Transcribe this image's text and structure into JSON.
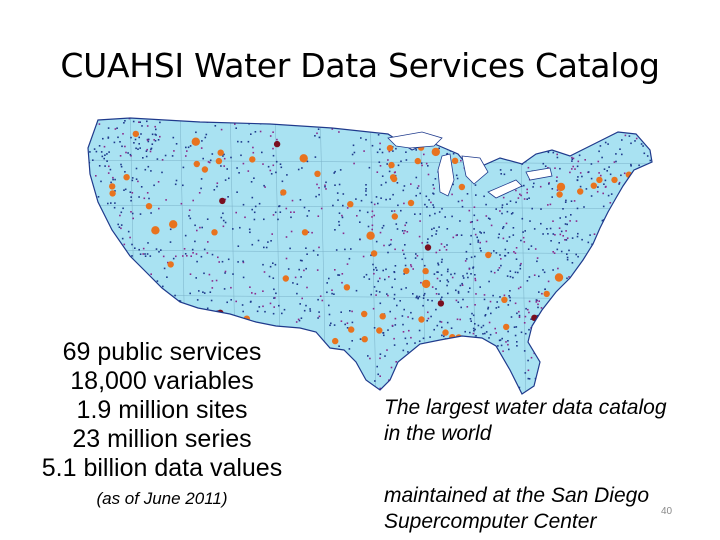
{
  "title": "CUAHSI Water Data Services Catalog",
  "stats": [
    "69 public services",
    "18,000 variables",
    "1.9 million sites",
    "23 million series",
    "5.1 billion data values"
  ],
  "as_of": "(as of June 2011)",
  "caption_1": "The largest water data catalog in the world",
  "caption_2": "maintained at the San Diego Supercomputer Center",
  "slide_number": "40",
  "map": {
    "region": "contiguous-united-states",
    "colors": {
      "land": "#a9e2f2",
      "site_dense": "#1f3a8c",
      "site_purple": "#8a2a8c",
      "service_dot": "#e8731f",
      "service_dot_dark": "#7a0f1f"
    }
  }
}
